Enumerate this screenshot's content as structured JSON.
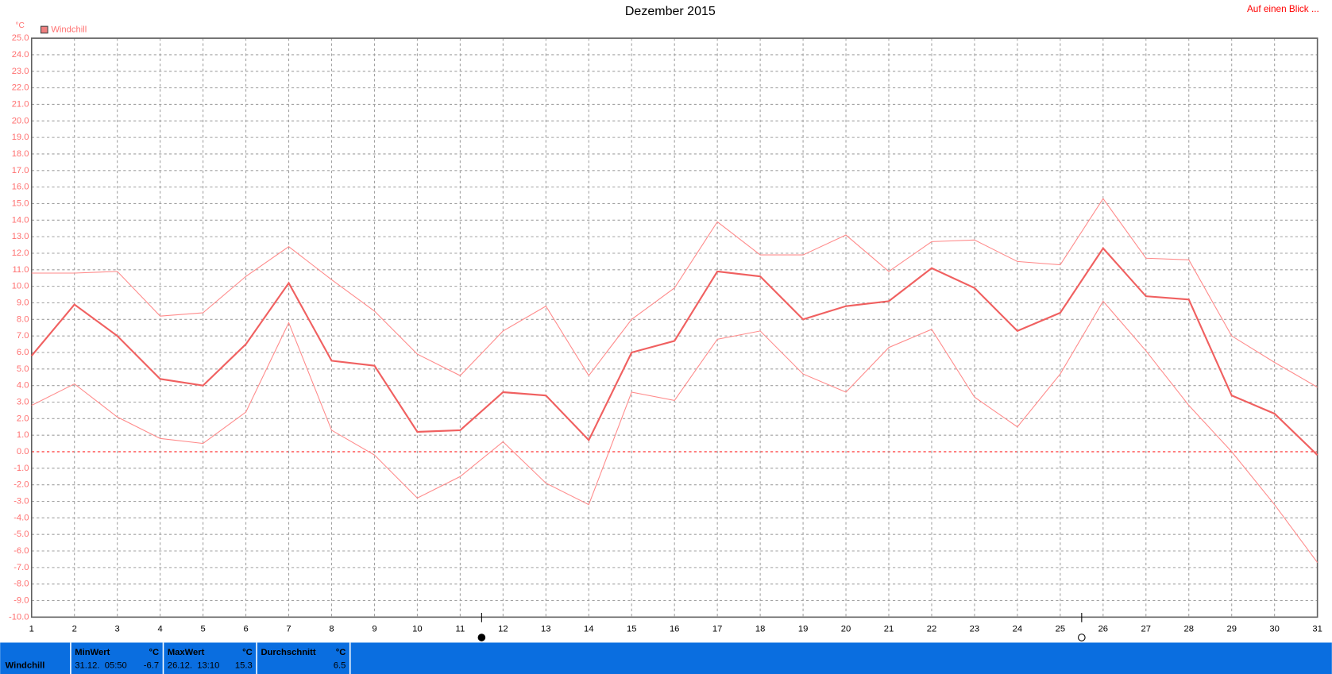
{
  "chart_data": {
    "type": "line",
    "title": "Dezember 2015",
    "link": "Auf einen Blick ...",
    "y_unit": "°C",
    "legend": "Windchill",
    "legend_color": "#f08080",
    "x": [
      1,
      2,
      3,
      4,
      5,
      6,
      7,
      8,
      9,
      10,
      11,
      12,
      13,
      14,
      15,
      16,
      17,
      18,
      19,
      20,
      21,
      22,
      23,
      24,
      25,
      26,
      27,
      28,
      29,
      30,
      31
    ],
    "series": [
      {
        "color": "#f06060",
        "values": [
          5.8,
          8.9,
          7.0,
          4.4,
          4.0,
          6.5,
          10.2,
          5.5,
          5.2,
          1.2,
          1.3,
          3.6,
          3.4,
          0.7,
          6.0,
          6.7,
          10.9,
          10.6,
          8.0,
          8.8,
          9.1,
          11.1,
          9.9,
          7.3,
          8.4,
          12.3,
          9.4,
          9.2,
          3.4,
          2.3,
          -0.2
        ]
      },
      {
        "color": "#ff8a8a",
        "values": [
          10.8,
          10.8,
          10.9,
          8.2,
          8.4,
          10.6,
          12.4,
          10.4,
          8.5,
          5.9,
          4.6,
          7.3,
          8.8,
          4.6,
          8.0,
          9.9,
          13.9,
          11.9,
          11.9,
          13.1,
          10.9,
          12.7,
          12.8,
          11.5,
          11.3,
          15.3,
          11.7,
          11.6,
          7.0,
          5.4,
          3.9
        ]
      },
      {
        "color": "#ff8a8a",
        "values": [
          2.8,
          4.1,
          2.1,
          0.8,
          0.5,
          2.4,
          7.8,
          1.3,
          -0.2,
          -2.8,
          -1.5,
          0.6,
          -1.9,
          -3.2,
          3.6,
          3.1,
          6.8,
          7.3,
          4.7,
          3.6,
          6.3,
          7.4,
          3.3,
          1.5,
          4.7,
          9.1,
          6.1,
          2.8,
          0.0,
          -3.2,
          -6.7
        ]
      }
    ],
    "xlim": [
      1,
      31
    ],
    "xticks": [
      1,
      2,
      3,
      4,
      5,
      6,
      7,
      8,
      9,
      10,
      11,
      12,
      13,
      14,
      15,
      16,
      17,
      18,
      19,
      20,
      21,
      22,
      23,
      24,
      25,
      26,
      27,
      28,
      29,
      30,
      31
    ],
    "ylim": [
      -10,
      25
    ],
    "yticks": [
      {
        "value": 25,
        "label": "25.0"
      },
      {
        "value": 24,
        "label": "24.0"
      },
      {
        "value": 23,
        "label": "23.0"
      },
      {
        "value": 22,
        "label": "22.0"
      },
      {
        "value": 21,
        "label": "21.0"
      },
      {
        "value": 20,
        "label": "20.0"
      },
      {
        "value": 19,
        "label": "19.0"
      },
      {
        "value": 18,
        "label": "18.0"
      },
      {
        "value": 17,
        "label": "17.0"
      },
      {
        "value": 16,
        "label": "16.0"
      },
      {
        "value": 15,
        "label": "15.0"
      },
      {
        "value": 14,
        "label": "14.0"
      },
      {
        "value": 13,
        "label": "13.0"
      },
      {
        "value": 12,
        "label": "12.0"
      },
      {
        "value": 11,
        "label": "11.0"
      },
      {
        "value": 10,
        "label": "10.0"
      },
      {
        "value": 9,
        "label": "9.0"
      },
      {
        "value": 8,
        "label": "8.0"
      },
      {
        "value": 7,
        "label": "7.0"
      },
      {
        "value": 6,
        "label": "6.0"
      },
      {
        "value": 5,
        "label": "5.0"
      },
      {
        "value": 4,
        "label": "4.0"
      },
      {
        "value": 3,
        "label": "3.0"
      },
      {
        "value": 2,
        "label": "2.0"
      },
      {
        "value": 1,
        "label": "1.0"
      },
      {
        "value": 0,
        "label": "0.0"
      },
      {
        "value": -1,
        "label": "-1.0"
      },
      {
        "value": -2,
        "label": "-2.0"
      },
      {
        "value": -3,
        "label": "-3.0"
      },
      {
        "value": -4,
        "label": "-4.0"
      },
      {
        "value": -5,
        "label": "-5.0"
      },
      {
        "value": -6,
        "label": "-6.0"
      },
      {
        "value": -7,
        "label": "-7.0"
      },
      {
        "value": -8,
        "label": "-8.0"
      },
      {
        "value": -9,
        "label": "-9.0"
      },
      {
        "value": -10,
        "label": "-10.0"
      }
    ],
    "grid": true,
    "zero_line_color": "#ff0000",
    "moon_x": [
      11.5,
      25.5
    ]
  },
  "stats": {
    "label": "Windchill",
    "columns": [
      {
        "header": "MinWert",
        "unit": "°C",
        "time": "31.12.  05:50",
        "value": -6.7
      },
      {
        "header": "MaxWert",
        "unit": "°C",
        "time": "26.12.  13:10",
        "value": 15.3
      },
      {
        "header": "Durchschnitt",
        "unit": "°C",
        "value": 6.5
      }
    ]
  }
}
